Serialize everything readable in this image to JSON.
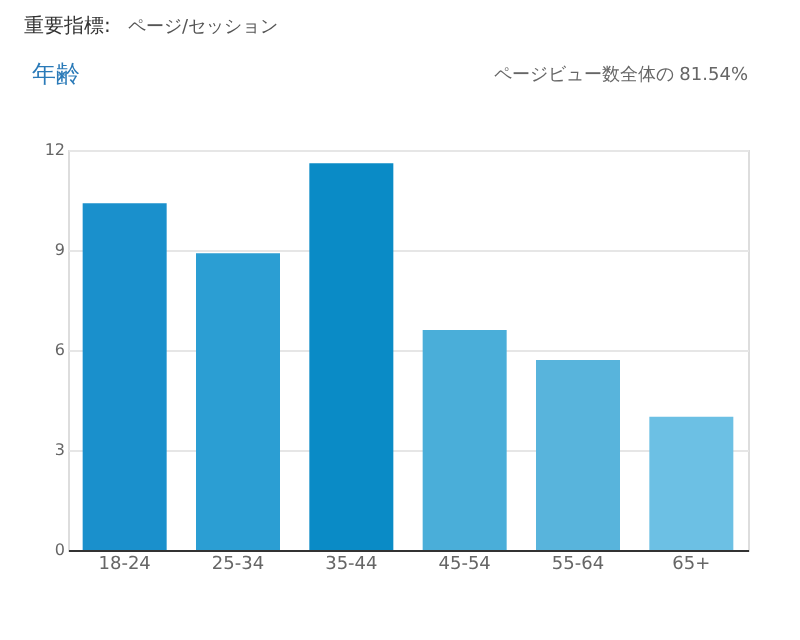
{
  "chart_data": {
    "type": "bar",
    "title": "年齢",
    "annotations": [
      "重要指標:",
      "ページ/セッション",
      "ページビュー数全体の 81.54%"
    ],
    "categories": [
      "18-24",
      "25-34",
      "35-44",
      "45-54",
      "55-64",
      "65+"
    ],
    "values": [
      10.4,
      8.9,
      11.6,
      6.6,
      5.7,
      4.0
    ],
    "colors": [
      "#1a90cc",
      "#2b9ed3",
      "#0a8bc6",
      "#4aaed9",
      "#58b4dc",
      "#6cc0e4"
    ],
    "ylim": [
      0,
      12
    ],
    "yticks": [
      0,
      3,
      6,
      9,
      12
    ],
    "grid": "y"
  }
}
